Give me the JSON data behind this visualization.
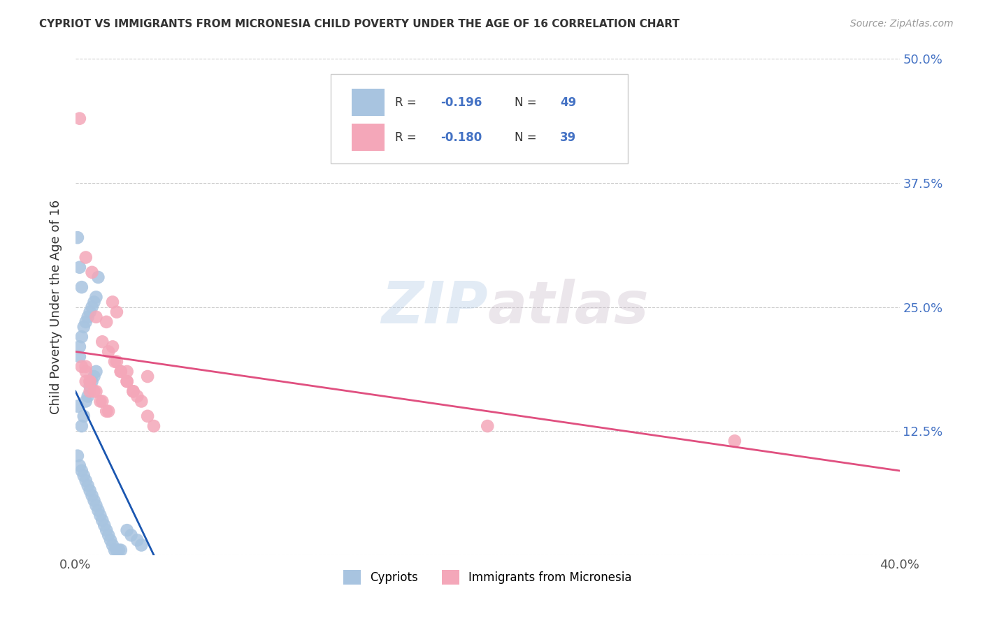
{
  "title": "CYPRIOT VS IMMIGRANTS FROM MICRONESIA CHILD POVERTY UNDER THE AGE OF 16 CORRELATION CHART",
  "source": "Source: ZipAtlas.com",
  "ylabel": "Child Poverty Under the Age of 16",
  "xmin": 0.0,
  "xmax": 0.4,
  "ymin": 0.0,
  "ymax": 0.5,
  "ytick_positions": [
    0.0,
    0.125,
    0.25,
    0.375,
    0.5
  ],
  "ytick_labels_right": [
    "",
    "12.5%",
    "25.0%",
    "37.5%",
    "50.0%"
  ],
  "xtick_positions": [
    0.0,
    0.1,
    0.2,
    0.3,
    0.4
  ],
  "xtick_labels": [
    "0.0%",
    "",
    "",
    "",
    "40.0%"
  ],
  "legend_R1": "-0.196",
  "legend_N1": "49",
  "legend_R2": "-0.180",
  "legend_N2": "39",
  "cypriot_color": "#a8c4e0",
  "micronesia_color": "#f4a7b9",
  "blue_line_color": "#1a56b0",
  "pink_line_color": "#e05080",
  "blue_line_x": [
    0.0,
    0.038
  ],
  "blue_line_y": [
    0.165,
    0.0
  ],
  "pink_line_x": [
    0.0,
    0.4
  ],
  "pink_line_y": [
    0.205,
    0.085
  ],
  "cypriot_x": [
    0.001,
    0.002,
    0.003,
    0.004,
    0.005,
    0.006,
    0.007,
    0.008,
    0.009,
    0.01,
    0.011,
    0.012,
    0.013,
    0.014,
    0.015,
    0.016,
    0.017,
    0.018,
    0.019,
    0.02,
    0.021,
    0.022,
    0.003,
    0.004,
    0.005,
    0.006,
    0.007,
    0.008,
    0.009,
    0.01,
    0.002,
    0.003,
    0.004,
    0.005,
    0.006,
    0.007,
    0.008,
    0.009,
    0.01,
    0.011,
    0.001,
    0.002,
    0.003,
    0.025,
    0.027,
    0.03,
    0.032,
    0.001,
    0.002
  ],
  "cypriot_y": [
    0.1,
    0.09,
    0.085,
    0.08,
    0.075,
    0.07,
    0.065,
    0.06,
    0.055,
    0.05,
    0.045,
    0.04,
    0.035,
    0.03,
    0.025,
    0.02,
    0.015,
    0.01,
    0.005,
    0.005,
    0.005,
    0.005,
    0.13,
    0.14,
    0.155,
    0.16,
    0.17,
    0.175,
    0.18,
    0.185,
    0.21,
    0.22,
    0.23,
    0.235,
    0.24,
    0.245,
    0.25,
    0.255,
    0.26,
    0.28,
    0.32,
    0.29,
    0.27,
    0.025,
    0.02,
    0.015,
    0.01,
    0.15,
    0.2
  ],
  "micronesia_x": [
    0.003,
    0.005,
    0.007,
    0.009,
    0.012,
    0.015,
    0.018,
    0.02,
    0.022,
    0.025,
    0.028,
    0.032,
    0.035,
    0.038,
    0.005,
    0.008,
    0.01,
    0.013,
    0.016,
    0.019,
    0.022,
    0.025,
    0.028,
    0.03,
    0.035,
    0.015,
    0.018,
    0.02,
    0.025,
    0.005,
    0.007,
    0.01,
    0.013,
    0.016,
    0.2,
    0.32,
    0.002,
    0.005,
    0.007
  ],
  "micronesia_y": [
    0.19,
    0.185,
    0.175,
    0.165,
    0.155,
    0.145,
    0.21,
    0.195,
    0.185,
    0.175,
    0.165,
    0.155,
    0.14,
    0.13,
    0.3,
    0.285,
    0.24,
    0.215,
    0.205,
    0.195,
    0.185,
    0.175,
    0.165,
    0.16,
    0.18,
    0.235,
    0.255,
    0.245,
    0.185,
    0.19,
    0.175,
    0.165,
    0.155,
    0.145,
    0.13,
    0.115,
    0.44,
    0.175,
    0.165
  ]
}
